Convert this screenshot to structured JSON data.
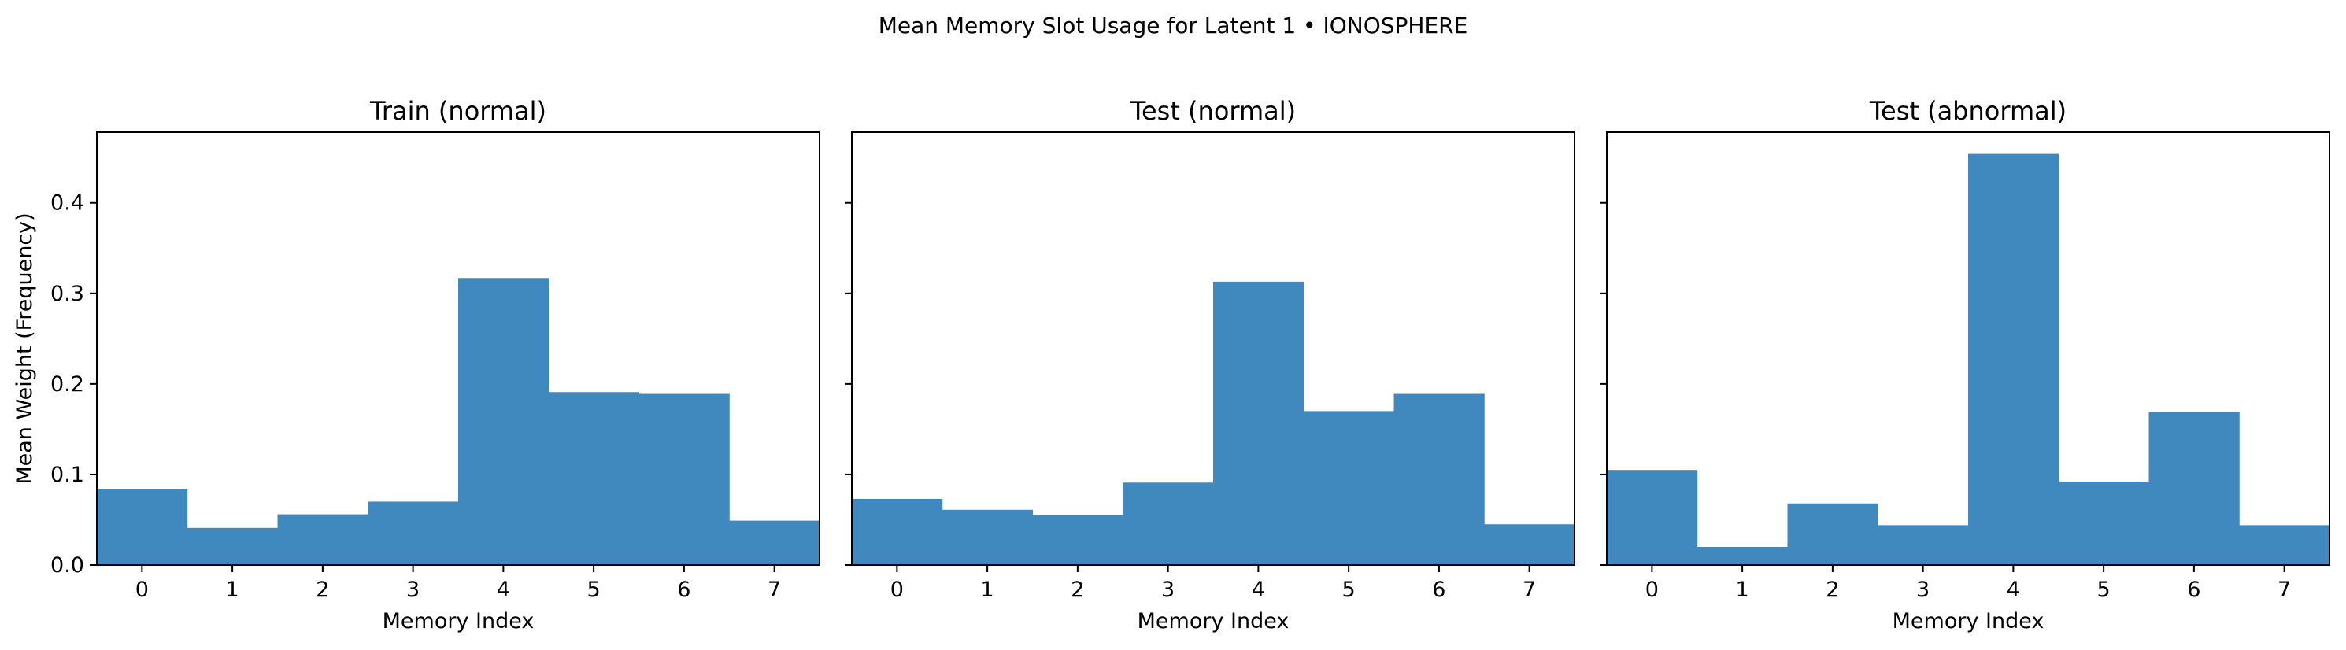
{
  "figure": {
    "suptitle": "Mean Memory Slot Usage for Latent 1 • IONOSPHERE"
  },
  "colors": {
    "bar": "#4089BF",
    "axis": "#000000",
    "background": "#ffffff"
  },
  "chart_data": [
    {
      "type": "bar",
      "title": "Train (normal)",
      "xlabel": "Memory Index",
      "ylabel": "Mean Weight (Frequency)",
      "categories": [
        "0",
        "1",
        "2",
        "3",
        "4",
        "5",
        "6",
        "7"
      ],
      "values": [
        0.084,
        0.041,
        0.056,
        0.07,
        0.317,
        0.191,
        0.189,
        0.049
      ],
      "ylim": [
        0,
        0.478
      ],
      "yticks": [
        "0.0",
        "0.1",
        "0.2",
        "0.3",
        "0.4"
      ],
      "grid": false
    },
    {
      "type": "bar",
      "title": "Test (normal)",
      "xlabel": "Memory Index",
      "ylabel": "",
      "categories": [
        "0",
        "1",
        "2",
        "3",
        "4",
        "5",
        "6",
        "7"
      ],
      "values": [
        0.073,
        0.061,
        0.055,
        0.091,
        0.313,
        0.17,
        0.189,
        0.045
      ],
      "ylim": [
        0,
        0.478
      ],
      "yticks": [],
      "grid": false
    },
    {
      "type": "bar",
      "title": "Test (abnormal)",
      "xlabel": "Memory Index",
      "ylabel": "",
      "categories": [
        "0",
        "1",
        "2",
        "3",
        "4",
        "5",
        "6",
        "7"
      ],
      "values": [
        0.105,
        0.02,
        0.068,
        0.044,
        0.454,
        0.092,
        0.169,
        0.044
      ],
      "ylim": [
        0,
        0.478
      ],
      "yticks": [],
      "grid": false
    }
  ]
}
